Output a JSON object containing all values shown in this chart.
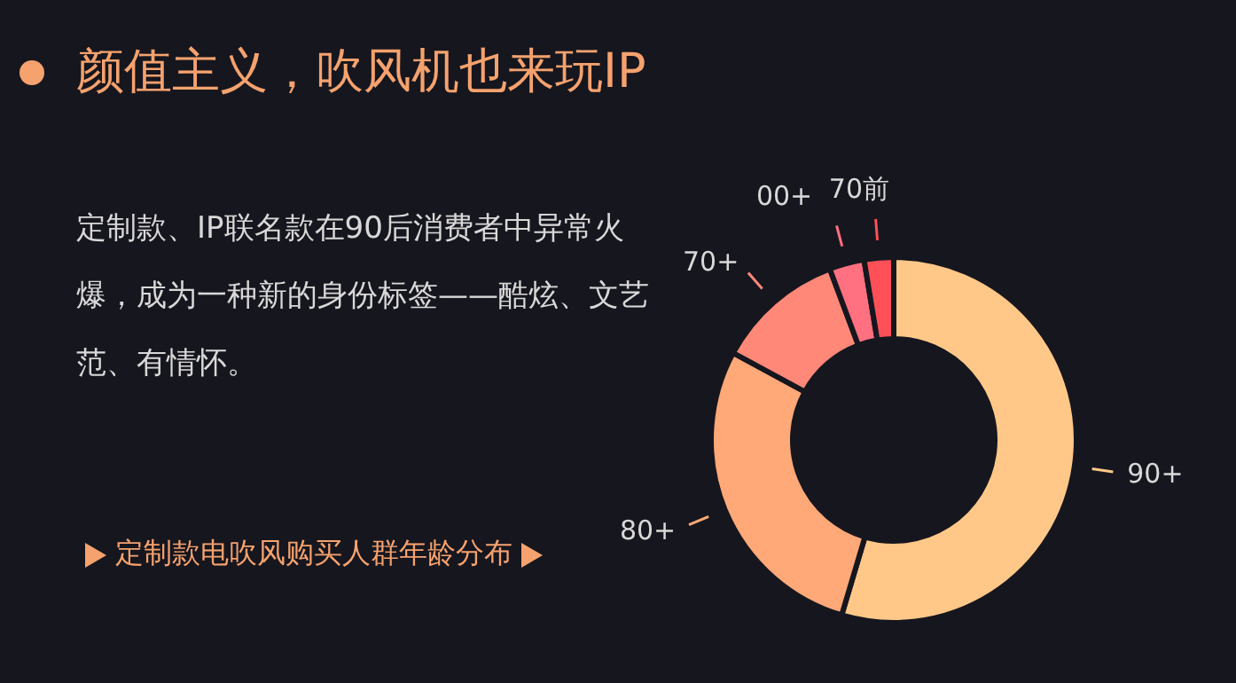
{
  "chart_data": {
    "type": "donut",
    "title": "颜值主义，吹风机也来玩IP",
    "subtitle": "定制款、IP联名款在90后消费者中异常火爆，成为一种新的身份标签——酷炫、文艺范、有情怀。",
    "annotations": [
      "定制款电吹风购买人群年龄分布"
    ],
    "categories": [
      "90+",
      "80+",
      "70+",
      "00+",
      "70前"
    ],
    "values": [
      54.6,
      28.3,
      11.4,
      3.1,
      2.6
    ],
    "colors": [
      "#ffc888",
      "#ffa878",
      "#ff8878",
      "#ff7080",
      "#ff5058"
    ],
    "legend": false
  }
}
